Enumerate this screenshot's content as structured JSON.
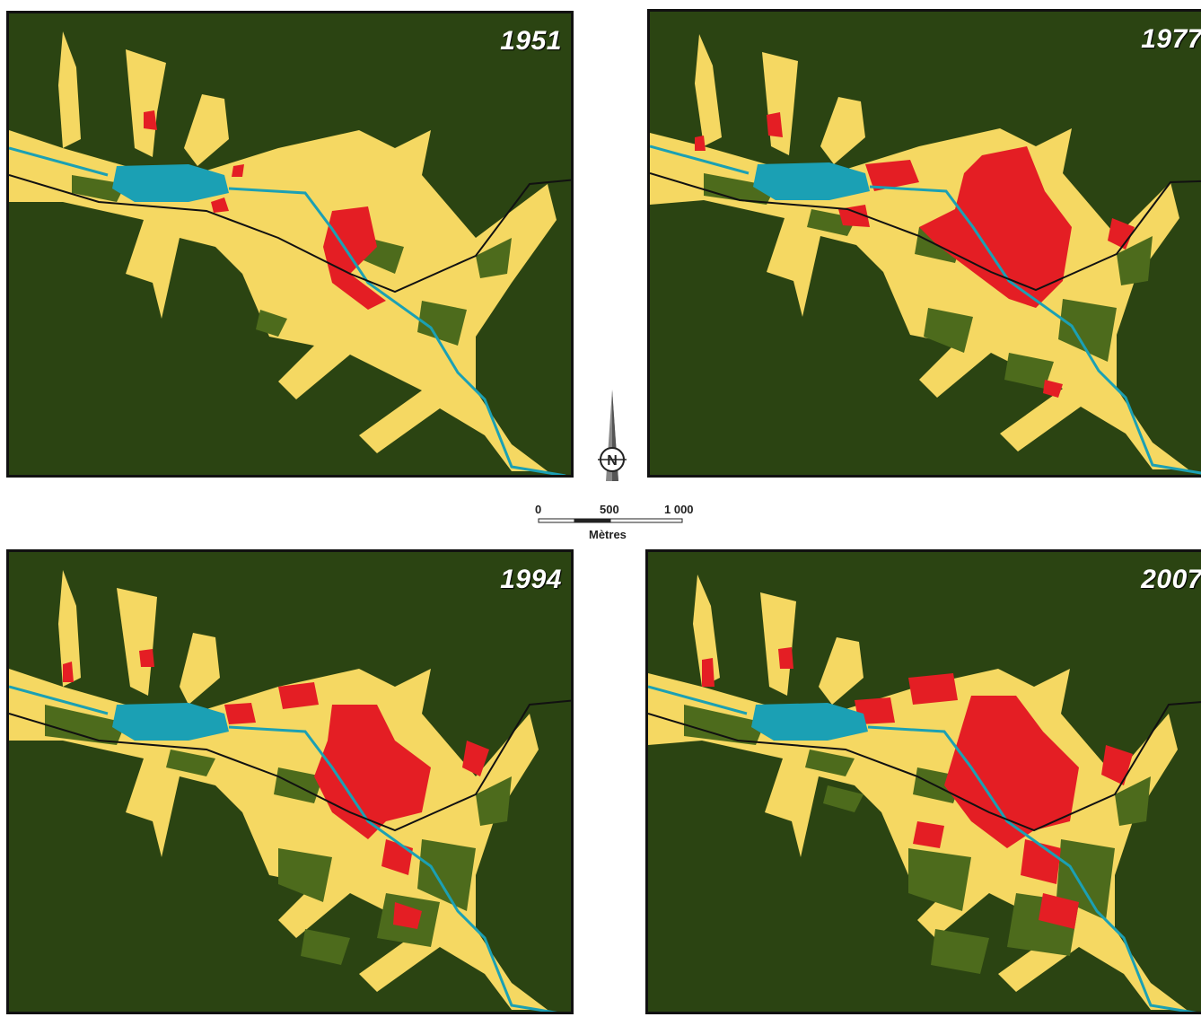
{
  "maps": [
    {
      "year": "1951"
    },
    {
      "year": "1977"
    },
    {
      "year": "1994"
    },
    {
      "year": "2007"
    }
  ],
  "north_arrow": {
    "label": "N"
  },
  "scale_bar": {
    "tick_0": "0",
    "tick_mid": "500",
    "tick_end": "1 000",
    "unit": "Mètres"
  },
  "colors": {
    "forest": "#2b4412",
    "agriculture": "#f5d862",
    "urban": "#e41e24",
    "grassland": "#4d6b1c",
    "water": "#1ba0b4",
    "road": "#111111"
  }
}
